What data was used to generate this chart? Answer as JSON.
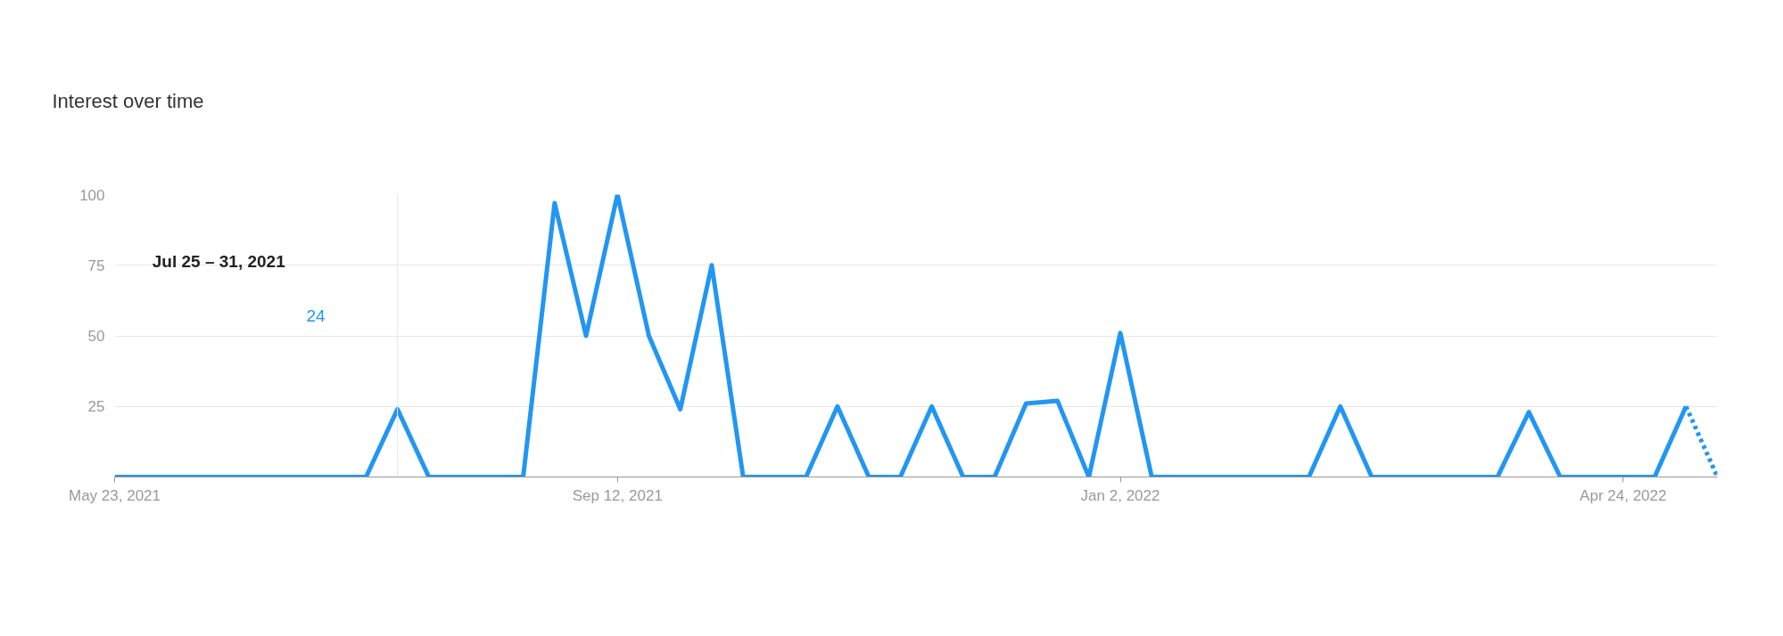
{
  "chart_data": {
    "type": "line",
    "title": "Interest over time",
    "x": [
      "2021-05-23",
      "2021-05-30",
      "2021-06-06",
      "2021-06-13",
      "2021-06-20",
      "2021-06-27",
      "2021-07-04",
      "2021-07-11",
      "2021-07-18",
      "2021-07-25",
      "2021-08-01",
      "2021-08-08",
      "2021-08-15",
      "2021-08-22",
      "2021-08-29",
      "2021-09-05",
      "2021-09-12",
      "2021-09-19",
      "2021-09-26",
      "2021-10-03",
      "2021-10-10",
      "2021-10-17",
      "2021-10-24",
      "2021-10-31",
      "2021-11-07",
      "2021-11-14",
      "2021-11-21",
      "2021-11-28",
      "2021-12-05",
      "2021-12-12",
      "2021-12-19",
      "2021-12-26",
      "2022-01-02",
      "2022-01-09",
      "2022-01-16",
      "2022-01-23",
      "2022-01-30",
      "2022-02-06",
      "2022-02-13",
      "2022-02-20",
      "2022-02-27",
      "2022-03-06",
      "2022-03-13",
      "2022-03-20",
      "2022-03-27",
      "2022-04-03",
      "2022-04-10",
      "2022-04-17",
      "2022-04-24",
      "2022-05-01",
      "2022-05-08",
      "2022-05-15"
    ],
    "series": [
      {
        "color": "#2196f3",
        "line_style": "solid",
        "values": [
          0,
          0,
          0,
          0,
          0,
          0,
          0,
          0,
          0,
          24,
          0,
          0,
          0,
          0,
          97,
          50,
          100,
          50,
          24,
          75,
          0,
          0,
          0,
          25,
          0,
          0,
          25,
          0,
          0,
          26,
          27,
          0,
          51,
          0,
          0,
          0,
          0,
          0,
          0,
          25,
          0,
          0,
          0,
          0,
          0,
          23,
          0,
          0,
          0,
          0,
          25,
          null
        ]
      },
      {
        "color": "#2196f3",
        "line_style": "dotted",
        "values": [
          null,
          null,
          null,
          null,
          null,
          null,
          null,
          null,
          null,
          null,
          null,
          null,
          null,
          null,
          null,
          null,
          null,
          null,
          null,
          null,
          null,
          null,
          null,
          null,
          null,
          null,
          null,
          null,
          null,
          null,
          null,
          null,
          null,
          null,
          null,
          null,
          null,
          null,
          null,
          null,
          null,
          null,
          null,
          null,
          null,
          null,
          null,
          null,
          null,
          null,
          25,
          0
        ]
      }
    ],
    "xlim": [
      "2021-05-23",
      "2022-05-15"
    ],
    "xticks": [
      {
        "value": "2021-05-23",
        "label": "May 23, 2021"
      },
      {
        "value": "2021-09-12",
        "label": "Sep 12, 2021"
      },
      {
        "value": "2022-01-02",
        "label": "Jan 2, 2022"
      },
      {
        "value": "2022-04-24",
        "label": "Apr 24, 2022"
      }
    ],
    "ylim": [
      0,
      100
    ],
    "yticks": [
      {
        "value": 0,
        "label": null
      },
      25,
      50,
      75,
      100
    ],
    "grid": "y",
    "marker": "none",
    "ref_lines": [
      {
        "axis": "x",
        "value": "2021-07-25",
        "color": "#e6e6e6"
      }
    ],
    "annotations": [
      "Jul 25 – 31, 2021",
      "24"
    ]
  }
}
